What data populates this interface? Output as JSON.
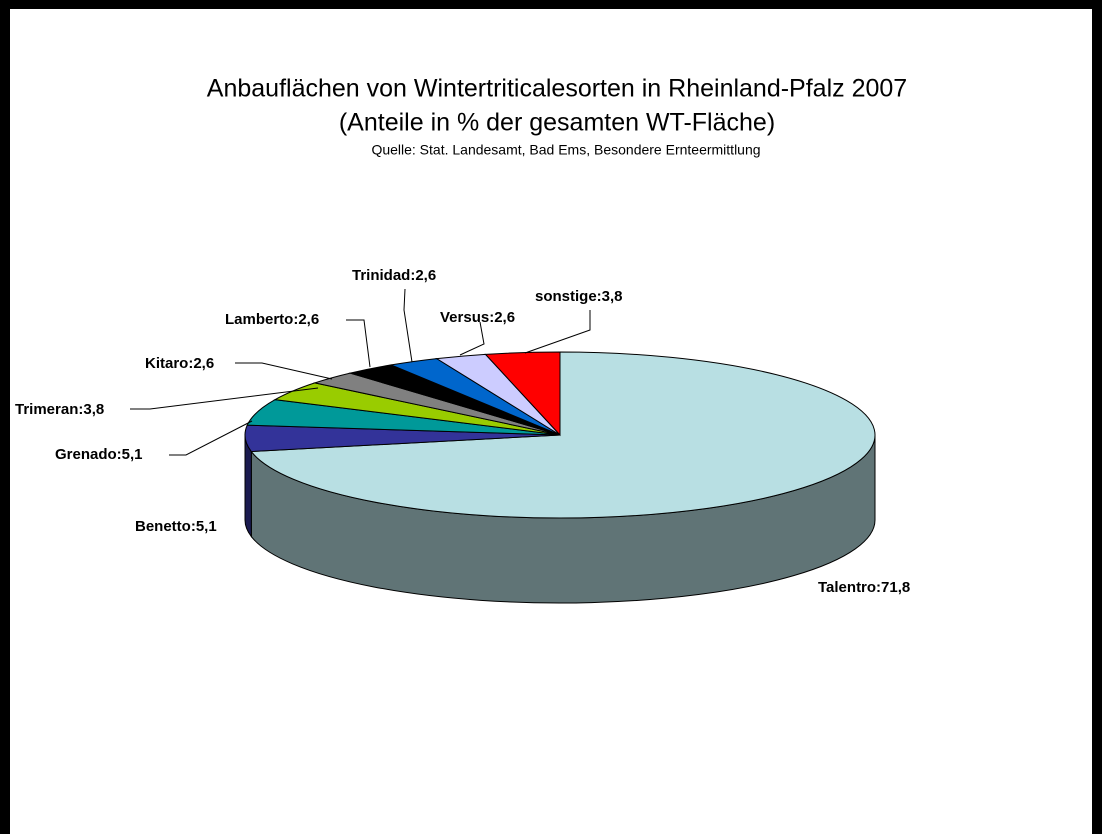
{
  "chart_data": {
    "type": "pie3d",
    "title": "Anbauflächen von Wintertriticalesorten in Rheinland-Pfalz 2007",
    "subtitle": "(Anteile in % der gesamten WT-Fläche)",
    "source": "Quelle: Stat. Landesamt, Bad Ems, Besondere Ernteermittlung",
    "values": [
      71.8,
      5.1,
      5.1,
      3.8,
      2.6,
      2.6,
      2.6,
      2.6,
      3.8
    ],
    "value_labels": [
      "Talentro:71,8",
      "Benetto:5,1",
      "Grenado:5,1",
      "Trimeran:3,8",
      "Kitaro:2,6",
      "Lamberto:2,6",
      "Trinidad:2,6",
      "Versus:2,6",
      "sonstige:3,8"
    ],
    "colors": [
      "#b8dfe3",
      "#333399",
      "#009999",
      "#99cc00",
      "#808080",
      "#000000",
      "#0066cc",
      "#ccccff",
      "#ff0000"
    ]
  }
}
